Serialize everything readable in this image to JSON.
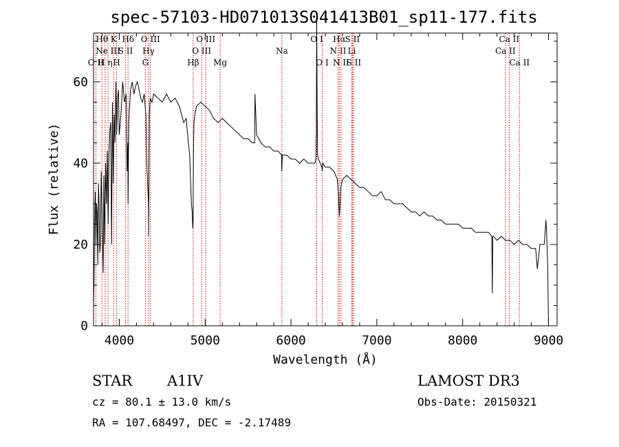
{
  "chart_data": {
    "type": "line",
    "title": "spec-57103-HD071013S041413B01_sp11-177.fits",
    "xlabel": "Wavelength (Å)",
    "ylabel": "Flux (relative)",
    "xlim": [
      3700,
      9100
    ],
    "ylim": [
      0,
      72
    ],
    "x_major_ticks": [
      4000,
      5000,
      6000,
      7000,
      8000,
      9000
    ],
    "x_minor_step": 200,
    "y_major_ticks": [
      0,
      20,
      40,
      60
    ],
    "y_minor_step": 5,
    "grid": false,
    "series": [
      {
        "name": "spectrum",
        "x": [
          3700,
          3705,
          3712,
          3720,
          3728,
          3735,
          3742,
          3750,
          3758,
          3765,
          3772,
          3780,
          3790,
          3800,
          3812,
          3820,
          3830,
          3840,
          3850,
          3860,
          3870,
          3880,
          3890,
          3900,
          3910,
          3920,
          3930,
          3940,
          3950,
          3960,
          3970,
          3980,
          3990,
          4000,
          4020,
          4040,
          4060,
          4080,
          4090,
          4100,
          4102,
          4110,
          4130,
          4150,
          4170,
          4190,
          4210,
          4230,
          4250,
          4270,
          4290,
          4310,
          4320,
          4330,
          4340,
          4341,
          4345,
          4350,
          4360,
          4380,
          4400,
          4450,
          4500,
          4550,
          4600,
          4650,
          4700,
          4750,
          4780,
          4800,
          4820,
          4840,
          4850,
          4855,
          4860,
          4862,
          4865,
          4870,
          4880,
          4900,
          4950,
          5000,
          5050,
          5100,
          5150,
          5200,
          5250,
          5300,
          5350,
          5400,
          5450,
          5500,
          5550,
          5577,
          5580,
          5600,
          5650,
          5700,
          5750,
          5800,
          5850,
          5890,
          5893,
          5900,
          5950,
          6000,
          6050,
          6100,
          6150,
          6200,
          6250,
          6280,
          6290,
          6295,
          6300,
          6305,
          6310,
          6320,
          6340,
          6360,
          6364,
          6370,
          6400,
          6450,
          6500,
          6540,
          6555,
          6563,
          6570,
          6580,
          6600,
          6650,
          6700,
          6750,
          6800,
          6850,
          6900,
          6950,
          7000,
          7050,
          7100,
          7150,
          7200,
          7250,
          7300,
          7350,
          7400,
          7450,
          7500,
          7550,
          7600,
          7650,
          7700,
          7750,
          7800,
          7850,
          7900,
          7950,
          8000,
          8050,
          8100,
          8150,
          8200,
          8250,
          8300,
          8340,
          8345,
          8350,
          8360,
          8400,
          8450,
          8500,
          8550,
          8600,
          8650,
          8700,
          8750,
          8800,
          8850,
          8870,
          8900,
          8950,
          8970,
          8980,
          8990,
          9000
        ],
        "y": [
          5,
          10,
          25,
          33,
          20,
          30,
          28,
          15,
          35,
          30,
          18,
          20,
          38,
          26,
          13,
          37,
          20,
          40,
          30,
          43,
          25,
          42,
          48,
          50,
          20,
          55,
          35,
          52,
          45,
          60,
          47,
          56,
          58,
          47,
          52,
          60,
          55,
          57,
          38,
          45,
          30,
          50,
          58,
          60,
          57,
          59,
          60,
          58,
          56,
          55,
          57,
          52,
          40,
          35,
          30,
          22,
          35,
          52,
          56,
          55,
          57,
          56,
          55,
          57,
          55,
          56,
          54,
          50,
          51,
          46,
          42,
          30,
          28,
          24,
          26,
          35,
          45,
          50,
          52,
          54,
          55,
          54,
          53,
          51,
          50,
          51,
          50,
          49,
          48,
          47,
          46,
          46,
          45,
          45,
          57,
          47,
          45,
          44,
          44,
          43,
          43,
          42,
          38,
          42,
          42,
          41,
          41,
          40,
          41,
          40,
          40,
          40,
          41,
          48,
          75,
          55,
          42,
          41,
          40,
          39,
          38,
          40,
          39,
          39,
          38,
          36,
          32,
          27,
          29,
          34,
          36,
          37,
          36,
          35,
          34,
          34,
          33,
          32,
          32,
          33,
          31,
          31,
          30,
          30,
          30,
          29,
          28,
          28,
          27,
          28,
          27,
          27,
          26,
          26,
          25,
          25,
          25,
          25,
          24,
          24,
          24,
          23,
          23,
          23,
          23,
          22,
          8,
          22,
          22,
          21,
          22,
          21,
          21,
          20,
          21,
          20,
          20,
          19,
          19,
          14,
          20,
          20,
          26,
          22,
          15,
          0
        ]
      }
    ],
    "line_markers": [
      {
        "name": "O II",
        "wavelength": 3727,
        "label_row": 2
      },
      {
        "name": "Hθ",
        "wavelength": 3798,
        "label_row": 0
      },
      {
        "name": "H η",
        "wavelength": 3835,
        "label_row": 2
      },
      {
        "name": "Ne III",
        "wavelength": 3869,
        "label_row": 1
      },
      {
        "name": "K",
        "wavelength": 3934,
        "label_row": 0
      },
      {
        "name": "H",
        "wavelength": 3969,
        "label_row": 2
      },
      {
        "name": "S II",
        "wavelength": 4072,
        "label_row": 1
      },
      {
        "name": "Hδ",
        "wavelength": 4102,
        "label_row": 0
      },
      {
        "name": "G",
        "wavelength": 4304,
        "label_row": 2
      },
      {
        "name": "Hγ",
        "wavelength": 4341,
        "label_row": 1
      },
      {
        "name": "O III",
        "wavelength": 4363,
        "label_row": 0
      },
      {
        "name": "Hβ",
        "wavelength": 4861,
        "label_row": 2
      },
      {
        "name": "O III",
        "wavelength": 4959,
        "label_row": 1
      },
      {
        "name": "O III",
        "wavelength": 5007,
        "label_row": 0
      },
      {
        "name": "Mg",
        "wavelength": 5175,
        "label_row": 2
      },
      {
        "name": "Na",
        "wavelength": 5894,
        "label_row": 1
      },
      {
        "name": "O I",
        "wavelength": 6300,
        "label_row": 0
      },
      {
        "name": "O I",
        "wavelength": 6364,
        "label_row": 2
      },
      {
        "name": "N II",
        "wavelength": 6548,
        "label_row": 1
      },
      {
        "name": "Hα",
        "wavelength": 6563,
        "label_row": 0
      },
      {
        "name": "N II",
        "wavelength": 6583,
        "label_row": 2
      },
      {
        "name": "Li",
        "wavelength": 6708,
        "label_row": 1
      },
      {
        "name": "S II",
        "wavelength": 6716,
        "label_row": 0
      },
      {
        "name": "S II",
        "wavelength": 6731,
        "label_row": 2
      },
      {
        "name": "Ca II",
        "wavelength": 8498,
        "label_row": 1
      },
      {
        "name": "Ca II",
        "wavelength": 8542,
        "label_row": 0
      },
      {
        "name": "Ca II",
        "wavelength": 8662,
        "label_row": 2
      }
    ],
    "marker_color": "#cc0000"
  },
  "info": {
    "object_class": "STAR",
    "subclass": "A1IV",
    "survey": "LAMOST DR3",
    "cz": "cz = 80.1 ± 13.0 km/s",
    "obs_date": "Obs-Date: 20150321",
    "coords": "RA = 107.68497, DEC =  -2.17489"
  }
}
